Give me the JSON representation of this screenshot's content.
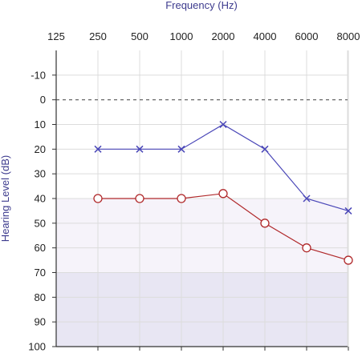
{
  "chart_data": {
    "type": "line",
    "xlabel": "Frequency (Hz)",
    "ylabel": "Hearing Level (dB)",
    "x_categories": [
      "125",
      "250",
      "500",
      "1000",
      "2000",
      "4000",
      "6000",
      "8000"
    ],
    "y_ticks": [
      -10,
      0,
      10,
      20,
      30,
      40,
      50,
      60,
      70,
      80,
      90,
      100
    ],
    "ylim": [
      -20,
      100
    ],
    "y_reversed": true,
    "grid": true,
    "reference_line": {
      "y": 0,
      "style": "dashed",
      "color": "#555555"
    },
    "bands": [
      {
        "from": 40,
        "to": 70,
        "color": "#f6f3fa"
      },
      {
        "from": 70,
        "to": 100,
        "color": "#e8e6f3"
      }
    ],
    "series": [
      {
        "marker": "x",
        "color": "#4a47b8",
        "x": [
          "250",
          "500",
          "1000",
          "2000",
          "4000",
          "6000",
          "8000"
        ],
        "values": [
          20,
          20,
          20,
          10,
          20,
          40,
          45
        ]
      },
      {
        "marker": "o",
        "color": "#b0282a",
        "x": [
          "250",
          "500",
          "1000",
          "2000",
          "4000",
          "6000",
          "8000"
        ],
        "values": [
          40,
          40,
          40,
          38,
          50,
          60,
          65
        ]
      }
    ]
  }
}
